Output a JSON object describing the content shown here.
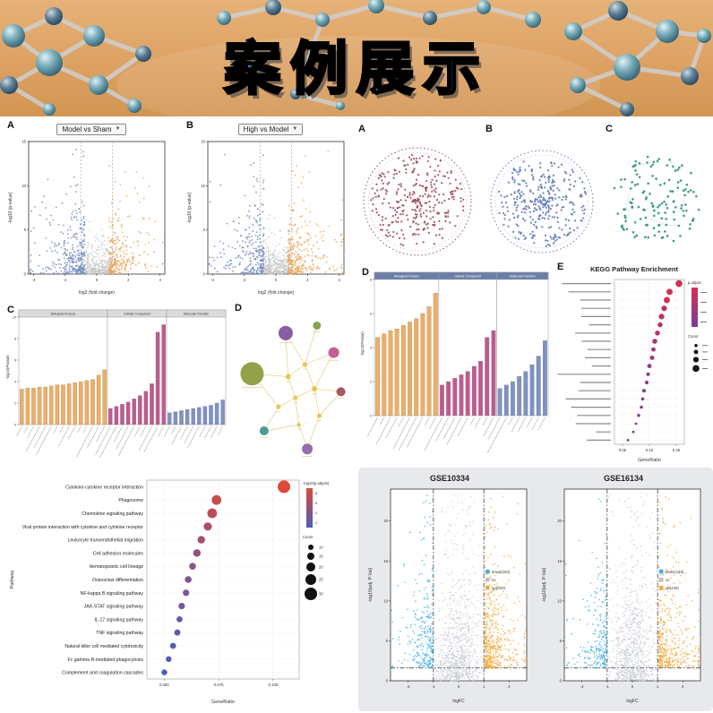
{
  "banner": {
    "title": "案例展示"
  },
  "chart_data": [
    {
      "id": "volcanoA",
      "type": "volcano",
      "panel": "A",
      "title": "Model vs Sham",
      "xlabel": "log2 (fold change)",
      "ylabel": "-log10 (p-value)",
      "xlim": [
        -4.3,
        4.3
      ],
      "xticks": [
        -4,
        -2,
        0,
        2,
        4
      ],
      "ylim": [
        0,
        15
      ],
      "yticks": [
        0,
        5,
        10,
        15
      ],
      "vlines": [
        -1,
        1
      ],
      "line_dash": "2 2",
      "line_color": "#aaaaaa",
      "groups": [
        {
          "name": "ns",
          "kind": "ctr",
          "n": 420,
          "xs": 0.8,
          "xmax": 1.0,
          "ys": 1.1,
          "color": "#c6c6c6",
          "r": 0.8
        },
        {
          "name": "down",
          "kind": "neg",
          "n": 310,
          "x0": 0.75,
          "xs": 0.95,
          "ys": 2.8,
          "color": "#7089c0",
          "r": 0.9
        },
        {
          "name": "up",
          "kind": "pos",
          "n": 250,
          "x0": 0.75,
          "xs": 0.85,
          "ys": 2.8,
          "color": "#eba55d",
          "r": 0.9
        }
      ]
    },
    {
      "id": "volcanoB",
      "type": "volcano",
      "panel": "B",
      "title": "High vs Model",
      "xlabel": "log2 (fold change)",
      "ylabel": "-log10 (p-value)",
      "xlim": [
        -4.3,
        4.3
      ],
      "xticks": [
        -4,
        -2,
        0,
        2,
        4
      ],
      "ylim": [
        0,
        15
      ],
      "yticks": [
        0,
        5,
        10,
        15
      ],
      "vlines": [
        -1,
        1
      ],
      "line_dash": "2 2",
      "line_color": "#aaaaaa",
      "groups": [
        {
          "name": "ns",
          "kind": "ctr",
          "n": 420,
          "xs": 0.8,
          "xmax": 1.0,
          "ys": 1.1,
          "color": "#c6c6c6",
          "r": 0.8
        },
        {
          "name": "down",
          "kind": "neg",
          "n": 260,
          "x0": 0.75,
          "xs": 0.9,
          "ys": 2.8,
          "color": "#7089c0",
          "r": 0.9
        },
        {
          "name": "up",
          "kind": "pos",
          "n": 300,
          "x0": 0.75,
          "xs": 0.9,
          "ys": 2.8,
          "color": "#eba55d",
          "r": 0.9
        }
      ]
    },
    {
      "id": "ringA",
      "type": "ring",
      "panel": "A",
      "color": "#9a4b55",
      "n": 300,
      "pow": 0.72,
      "boundary": true,
      "dot_r": 1.1
    },
    {
      "id": "ringB",
      "type": "ring",
      "panel": "B",
      "color": "#5b76b8",
      "n": 320,
      "pow": 0.72,
      "boundary": true,
      "dot_r": 1.1
    },
    {
      "id": "netC",
      "type": "ring",
      "panel": "C",
      "color": "#2e8e7e",
      "n": 130,
      "pow": 0.55,
      "boundary": false,
      "edges": true,
      "dot_r": 1.3
    },
    {
      "id": "barsC",
      "type": "bars",
      "panel": "C",
      "ylabel": "-log10(Pvalue)",
      "ylim": 10,
      "yticks": [
        0,
        2,
        4,
        6,
        8,
        10
      ],
      "header_bg": "#dcdcdc",
      "header_fg": "#333333",
      "facets": [
        {
          "label": "Biological Process",
          "color": "#efae62",
          "values": [
            3.3,
            3.4,
            3.4,
            3.5,
            3.5,
            3.6,
            3.7,
            3.7,
            3.8,
            3.9,
            4.0,
            4.1,
            4.2,
            4.6,
            5.1
          ]
        },
        {
          "label": "Cellular Component",
          "color": "#c05a8e",
          "values": [
            1.5,
            1.7,
            1.9,
            2.1,
            2.4,
            2.7,
            3.1,
            3.8,
            8.6,
            9.3
          ]
        },
        {
          "label": "Molecular Function",
          "color": "#7e92c5",
          "values": [
            1.1,
            1.2,
            1.3,
            1.4,
            1.5,
            1.6,
            1.7,
            1.8,
            2.0,
            2.3
          ]
        }
      ]
    },
    {
      "id": "bubbleD",
      "type": "bubble",
      "panel": "D",
      "edge_color": "#d4bc4e",
      "label_sim": true,
      "nodes": [
        {
          "x": 0.16,
          "y": 0.4,
          "r": 13,
          "color": "#8a9a3b"
        },
        {
          "x": 0.44,
          "y": 0.13,
          "r": 8,
          "color": "#7d4f9e"
        },
        {
          "x": 0.7,
          "y": 0.08,
          "r": 4.5,
          "color": "#7f9a3b"
        },
        {
          "x": 0.84,
          "y": 0.26,
          "r": 6,
          "color": "#c0508c"
        },
        {
          "x": 0.9,
          "y": 0.52,
          "r": 5,
          "color": "#a04a52"
        },
        {
          "x": 0.26,
          "y": 0.78,
          "r": 5,
          "color": "#3f8f8f"
        },
        {
          "x": 0.62,
          "y": 0.9,
          "r": 6,
          "color": "#8a5fa8"
        },
        {
          "x": 0.46,
          "y": 0.42,
          "r": 3,
          "color": "#e3c44d"
        },
        {
          "x": 0.6,
          "y": 0.34,
          "r": 2.6,
          "color": "#e3c44d"
        },
        {
          "x": 0.52,
          "y": 0.56,
          "r": 2.6,
          "color": "#e3c44d"
        },
        {
          "x": 0.68,
          "y": 0.5,
          "r": 3,
          "color": "#e3c44d"
        },
        {
          "x": 0.38,
          "y": 0.62,
          "r": 2.6,
          "color": "#e3c44d"
        },
        {
          "x": 0.72,
          "y": 0.68,
          "r": 2.6,
          "color": "#e3c44d"
        },
        {
          "x": 0.55,
          "y": 0.74,
          "r": 2.2,
          "color": "#e3c44d"
        }
      ],
      "edges": [
        [
          0,
          7
        ],
        [
          0,
          11
        ],
        [
          1,
          7
        ],
        [
          1,
          8
        ],
        [
          2,
          8
        ],
        [
          3,
          8
        ],
        [
          3,
          10
        ],
        [
          4,
          10
        ],
        [
          4,
          12
        ],
        [
          5,
          11
        ],
        [
          5,
          13
        ],
        [
          6,
          13
        ],
        [
          6,
          12
        ],
        [
          7,
          8
        ],
        [
          7,
          9
        ],
        [
          8,
          10
        ],
        [
          9,
          10
        ],
        [
          9,
          11
        ],
        [
          10,
          12
        ],
        [
          9,
          13
        ]
      ]
    },
    {
      "id": "barsD",
      "type": "bars",
      "panel": "D",
      "ylabel": "-log10(Pvalue)",
      "ylim": 8,
      "yticks": [
        0,
        2,
        4,
        6,
        8
      ],
      "header_bg": "#6a7fa8",
      "header_fg": "#ffffff",
      "facets": [
        {
          "label": "Biological Process",
          "color": "#efae62",
          "values": [
            4.6,
            4.8,
            5.0,
            5.1,
            5.3,
            5.5,
            5.7,
            6.0,
            6.4,
            7.2
          ]
        },
        {
          "label": "Cellular Component",
          "color": "#c05a8e",
          "values": [
            1.8,
            2.0,
            2.2,
            2.4,
            2.6,
            2.9,
            3.2,
            4.6,
            5.0
          ]
        },
        {
          "label": "Molecular Function",
          "color": "#7e92c5",
          "values": [
            1.6,
            1.8,
            2.0,
            2.3,
            2.6,
            3.0,
            3.5,
            4.4
          ]
        }
      ]
    },
    {
      "id": "keggE",
      "type": "dotplot",
      "panel": "E",
      "title": "KEGG Pathway Enrichment",
      "xlabel": "GeneRatio",
      "xlim": [
        0.02,
        0.28
      ],
      "xticks": [
        0.05,
        0.15,
        0.25
      ],
      "xtick_labels": [
        "0.05",
        "0.15",
        "0.25"
      ],
      "sim_labels": true,
      "legend_sim": true,
      "legend_grad_title": "p.adjust",
      "legend_count_title": "Count",
      "cmin_color": "#7a3b9e",
      "cmax_color": "#d62f4e",
      "val_range": [
        2,
        8
      ],
      "count_range": [
        2,
        9
      ],
      "rmap": [
        1.4,
        3.8
      ],
      "count_sizes": [
        3,
        5,
        7,
        9
      ],
      "grad_ticks": [
        8,
        6,
        4,
        2
      ],
      "rows": [
        {
          "ratio": 0.26,
          "count": 9,
          "val": 8.0
        },
        {
          "ratio": 0.225,
          "count": 8,
          "val": 7.6
        },
        {
          "ratio": 0.215,
          "count": 8,
          "val": 7.2
        },
        {
          "ratio": 0.205,
          "count": 7,
          "val": 6.8
        },
        {
          "ratio": 0.195,
          "count": 7,
          "val": 6.4
        },
        {
          "ratio": 0.19,
          "count": 6,
          "val": 6.0
        },
        {
          "ratio": 0.18,
          "count": 6,
          "val": 5.6
        },
        {
          "ratio": 0.17,
          "count": 6,
          "val": 5.2
        },
        {
          "ratio": 0.165,
          "count": 5,
          "val": 4.8
        },
        {
          "ratio": 0.16,
          "count": 5,
          "val": 4.4
        },
        {
          "ratio": 0.15,
          "count": 5,
          "val": 4.0
        },
        {
          "ratio": 0.145,
          "count": 4,
          "val": 3.7
        },
        {
          "ratio": 0.14,
          "count": 4,
          "val": 3.4
        },
        {
          "ratio": 0.13,
          "count": 4,
          "val": 3.1
        },
        {
          "ratio": 0.125,
          "count": 3,
          "val": 2.8
        },
        {
          "ratio": 0.12,
          "count": 3,
          "val": 2.6
        },
        {
          "ratio": 0.11,
          "count": 3,
          "val": 2.4
        },
        {
          "ratio": 0.1,
          "count": 2,
          "val": 2.2
        },
        {
          "ratio": 0.09,
          "count": 2,
          "val": 2.1
        },
        {
          "ratio": 0.07,
          "count": 2,
          "val": 2.0
        }
      ]
    },
    {
      "id": "keggMain",
      "type": "dotplot",
      "xlabel": "GeneRatio",
      "ylabel": "Pathway",
      "xlim": [
        0.042,
        0.112
      ],
      "xticks": [
        0.05,
        0.075,
        0.1
      ],
      "xtick_labels": [
        "0.050",
        "0.075",
        "0.100"
      ],
      "legend_grad_title": "-log10(p.adjust)",
      "legend_count_title": "Count",
      "cmin_color": "#4b5cbe",
      "cmax_color": "#e0483a",
      "val_range": [
        2,
        8
      ],
      "count_range": [
        10,
        30
      ],
      "rmap": [
        3,
        7
      ],
      "count_sizes": [
        10,
        15,
        20,
        25,
        30
      ],
      "grad_ticks": [
        8,
        6,
        4,
        2
      ],
      "label_size": 5.2,
      "rows": [
        {
          "label": "Cytokine-cytokine receptor interaction",
          "ratio": 0.105,
          "count": 30,
          "val": 8.0
        },
        {
          "label": "Phagosome",
          "ratio": 0.074,
          "count": 22,
          "val": 7.0
        },
        {
          "label": "Chemokine signaling pathway",
          "ratio": 0.072,
          "count": 22,
          "val": 6.5
        },
        {
          "label": "Viral protein interaction with cytokine and cytokine receptor",
          "ratio": 0.07,
          "count": 18,
          "val": 6.0
        },
        {
          "label": "Leukocyte transendothelial migration",
          "ratio": 0.067,
          "count": 16,
          "val": 5.5
        },
        {
          "label": "Cell adhesion molecules",
          "ratio": 0.065,
          "count": 16,
          "val": 5.0
        },
        {
          "label": "Hematopoietic cell lineage",
          "ratio": 0.063,
          "count": 14,
          "val": 4.6
        },
        {
          "label": "Osteoclast differentiation",
          "ratio": 0.061,
          "count": 14,
          "val": 4.2
        },
        {
          "label": "NF-kappa B signaling pathway",
          "ratio": 0.06,
          "count": 13,
          "val": 3.9
        },
        {
          "label": "JAK-STAT signaling pathway",
          "ratio": 0.058,
          "count": 13,
          "val": 3.6
        },
        {
          "label": "IL-17 signaling pathway",
          "ratio": 0.057,
          "count": 12,
          "val": 3.3
        },
        {
          "label": "TNF signaling pathway",
          "ratio": 0.056,
          "count": 12,
          "val": 3.0
        },
        {
          "label": "Natural killer cell mediated cytotoxicity",
          "ratio": 0.054,
          "count": 12,
          "val": 2.6
        },
        {
          "label": "Fc gamma R-mediated phagocytosis",
          "ratio": 0.052,
          "count": 11,
          "val": 2.3
        },
        {
          "label": "Complement and coagulation cascades",
          "ratio": 0.05,
          "count": 11,
          "val": 2.0
        }
      ]
    },
    {
      "id": "gse1",
      "type": "volcano",
      "title": "GSE10334",
      "xlabel": "logFC",
      "ylabel": "-log10(adj. P-Val)",
      "xlim": [
        -2.7,
        2.7
      ],
      "xticks": [
        -2,
        -1,
        0,
        1,
        2
      ],
      "ylim": [
        0,
        24
      ],
      "yticks": [
        0,
        5,
        10,
        15,
        20
      ],
      "vlines": [
        -1,
        1
      ],
      "hline": 1.6,
      "line_dash": "5 2 1.5 2",
      "line_color": "#222222",
      "groups": [
        {
          "name": "ns",
          "kind": "ctr",
          "n": 900,
          "xs": 0.45,
          "xmax": 0.99,
          "ys": 5.5,
          "color": "#c9ced6",
          "r": 0.75
        },
        {
          "name": "down",
          "kind": "neg",
          "n": 283,
          "x0": 1.02,
          "xs": 0.4,
          "y0": 1.6,
          "ys": 4.6,
          "color": "#43b0e4",
          "r": 0.8
        },
        {
          "name": "up",
          "kind": "pos",
          "n": 502,
          "x0": 1.02,
          "xs": 0.45,
          "y0": 1.6,
          "ys": 4.6,
          "color": "#f2a93c",
          "r": 0.8
        }
      ],
      "legend": [
        {
          "label": "down(283)",
          "color": "#43b0e4"
        },
        {
          "label": "ns",
          "color": "#b9bec6"
        },
        {
          "label": "up(502)",
          "color": "#f2a93c"
        }
      ]
    },
    {
      "id": "gse2",
      "type": "volcano",
      "title": "GSE16134",
      "xlabel": "logFC",
      "ylabel": "-log10(adj. P-Val)",
      "xlim": [
        -2.7,
        2.7
      ],
      "xticks": [
        -2,
        -1,
        0,
        1,
        2
      ],
      "ylim": [
        0,
        24
      ],
      "yticks": [
        0,
        5,
        10,
        15,
        20
      ],
      "vlines": [
        -1,
        1
      ],
      "hline": 1.6,
      "line_dash": "5 2 1.5 2",
      "line_color": "#222222",
      "groups": [
        {
          "name": "ns",
          "kind": "ctr",
          "n": 900,
          "xs": 0.45,
          "xmax": 0.99,
          "ys": 5.5,
          "color": "#c9ced6",
          "r": 0.75
        },
        {
          "name": "down",
          "kind": "neg",
          "n": 248,
          "x0": 1.02,
          "xs": 0.4,
          "y0": 1.6,
          "ys": 4.6,
          "color": "#43b0e4",
          "r": 0.8
        },
        {
          "name": "up",
          "kind": "pos",
          "n": 426,
          "x0": 1.02,
          "xs": 0.45,
          "y0": 1.6,
          "ys": 4.6,
          "color": "#f2a93c",
          "r": 0.8
        }
      ],
      "legend": [
        {
          "label": "down(248)",
          "color": "#43b0e4"
        },
        {
          "label": "ns",
          "color": "#b9bec6"
        },
        {
          "label": "up(426)",
          "color": "#f2a93c"
        }
      ]
    }
  ]
}
